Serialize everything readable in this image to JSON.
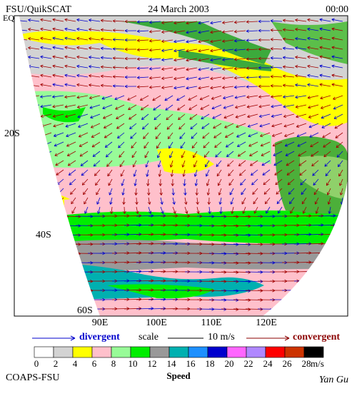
{
  "header": {
    "left": "FSU/QuikSCAT",
    "center": "24 March 2003",
    "right": "00:00"
  },
  "lat_labels": [
    "EQ",
    "20S",
    "40S",
    "60S"
  ],
  "lon_labels": [
    "90E",
    "100E",
    "110E",
    "120E"
  ],
  "scale": {
    "divergent": "divergent",
    "word": "scale",
    "length": "10 m/s",
    "convergent": "convergent"
  },
  "colorbar": {
    "ticks": [
      0,
      2,
      4,
      6,
      8,
      10,
      12,
      14,
      16,
      18,
      20,
      22,
      24,
      26,
      28
    ],
    "unit": "m/s",
    "label": "Speed",
    "colors": [
      "#ffffff",
      "#d3d3d3",
      "#ffff00",
      "#ffc0cb",
      "#98fb98",
      "#00ee00",
      "#999999",
      "#00b0b0",
      "#1e90ff",
      "#0000cd",
      "#ff66ff",
      "#b088ff",
      "#ff0000",
      "#cc3300",
      "#000000"
    ]
  },
  "footer": {
    "left": "COAPS-FSU",
    "right": "Yan Gu"
  }
}
